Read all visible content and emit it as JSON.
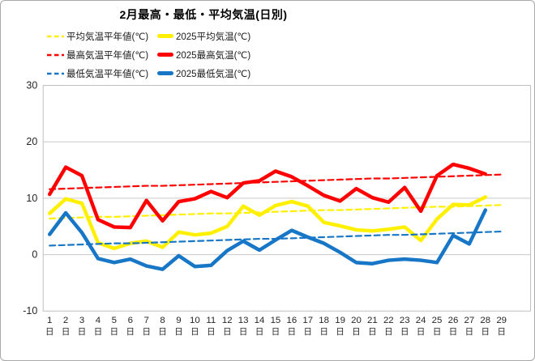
{
  "window": {
    "background": "#ffffff",
    "border_color": "#a8a8a8"
  },
  "chart_data": {
    "type": "line",
    "title": "2月最高・最低・平均気温(日別)",
    "xlabel": "",
    "ylabel": "",
    "ylim": [
      -10,
      30
    ],
    "grid": "horizontal",
    "legend_position": "top-left",
    "y_axis": {
      "ticks": [
        "30",
        "20",
        "10",
        "0",
        "-10"
      ],
      "tick_values": [
        30,
        20,
        10,
        0,
        -10
      ]
    },
    "x_axis": {
      "days": [
        "1",
        "2",
        "3",
        "4",
        "5",
        "6",
        "7",
        "8",
        "9",
        "10",
        "11",
        "12",
        "13",
        "14",
        "15",
        "16",
        "17",
        "18",
        "19",
        "20",
        "21",
        "22",
        "23",
        "24",
        "25",
        "26",
        "27",
        "28",
        "29"
      ],
      "day_suffix": "日"
    },
    "colors": {
      "average": "#fff000",
      "maximum": "#ff0000",
      "minimum": "#1776c6",
      "grid": "#c9c9c9",
      "axis_border": "#bfbfbf",
      "tick_text": "#262626"
    },
    "series": [
      {
        "id": "avg_normal",
        "label": "平均気温平年値(℃)",
        "color": "#fff000",
        "style": "dashed",
        "values": [
          6.4,
          6.5,
          6.6,
          6.7,
          6.7,
          6.8,
          6.9,
          7.0,
          7.1,
          7.2,
          7.3,
          7.3,
          7.4,
          7.5,
          7.6,
          7.7,
          7.8,
          7.9,
          7.9,
          8.0,
          8.1,
          8.2,
          8.3,
          8.4,
          8.5,
          8.5,
          8.6,
          8.7,
          8.8
        ]
      },
      {
        "id": "avg_2025",
        "label": "2025平均気温(℃)",
        "color": "#fff000",
        "style": "solid",
        "values": [
          7.3,
          9.9,
          9.1,
          2.1,
          1.1,
          2.0,
          2.4,
          1.3,
          4.0,
          3.5,
          3.8,
          5.0,
          8.6,
          7.0,
          8.7,
          9.4,
          8.6,
          5.7,
          5.1,
          4.4,
          4.2,
          4.5,
          4.9,
          2.5,
          6.3,
          8.9,
          8.8,
          10.2
        ]
      },
      {
        "id": "max_normal",
        "label": "最高気温平年値(℃)",
        "color": "#ff0000",
        "style": "dashed",
        "values": [
          11.6,
          11.7,
          11.8,
          11.9,
          12.0,
          12.1,
          12.2,
          12.2,
          12.3,
          12.4,
          12.5,
          12.6,
          12.7,
          12.8,
          12.9,
          13.0,
          13.1,
          13.2,
          13.3,
          13.4,
          13.5,
          13.5,
          13.6,
          13.7,
          13.8,
          13.9,
          14.0,
          14.1,
          14.2
        ]
      },
      {
        "id": "max_2025",
        "label": "2025最高気温(℃)",
        "color": "#ff0000",
        "style": "solid",
        "values": [
          10.7,
          15.5,
          14.0,
          6.2,
          4.9,
          4.8,
          9.6,
          6.0,
          9.4,
          9.9,
          11.2,
          10.1,
          12.7,
          13.1,
          14.8,
          13.8,
          12.2,
          10.5,
          9.5,
          11.7,
          10.1,
          9.3,
          11.9,
          7.7,
          14.0,
          16.0,
          15.3,
          14.3
        ]
      },
      {
        "id": "min_normal",
        "label": "最低気温平年値(℃)",
        "color": "#1776c6",
        "style": "dashed",
        "values": [
          1.6,
          1.7,
          1.8,
          1.9,
          2.0,
          2.0,
          2.1,
          2.2,
          2.3,
          2.4,
          2.5,
          2.6,
          2.7,
          2.8,
          2.8,
          2.9,
          3.0,
          3.1,
          3.2,
          3.3,
          3.4,
          3.5,
          3.5,
          3.6,
          3.7,
          3.8,
          3.9,
          4.0,
          4.1
        ]
      },
      {
        "id": "min_2025",
        "label": "2025最低気温(℃)",
        "color": "#1776c6",
        "style": "solid",
        "values": [
          3.6,
          7.4,
          3.9,
          -0.7,
          -1.4,
          -0.8,
          -2.0,
          -2.6,
          -0.2,
          -2.1,
          -1.9,
          0.7,
          2.4,
          0.8,
          2.6,
          4.3,
          3.1,
          2.0,
          0.4,
          -1.4,
          -1.6,
          -1.0,
          -0.8,
          -1.0,
          -1.4,
          3.4,
          1.9,
          7.9
        ]
      }
    ],
    "legend_rows": [
      {
        "color": "#fff000",
        "items": [
          {
            "name": "legend-avg-normal",
            "style": "dashed",
            "label": "平均気温平年値(℃)"
          },
          {
            "name": "legend-avg-2025",
            "style": "solid",
            "label": "2025平均気温(℃)"
          }
        ]
      },
      {
        "color": "#ff0000",
        "items": [
          {
            "name": "legend-max-normal",
            "style": "dashed",
            "label": "最高気温平年値(℃)"
          },
          {
            "name": "legend-max-2025",
            "style": "solid",
            "label": "2025最高気温(℃)"
          }
        ]
      },
      {
        "color": "#1776c6",
        "items": [
          {
            "name": "legend-min-normal",
            "style": "dashed",
            "label": "最低気温平年値(℃)"
          },
          {
            "name": "legend-min-2025",
            "style": "solid",
            "label": "2025最低気温(℃)"
          }
        ]
      }
    ]
  }
}
